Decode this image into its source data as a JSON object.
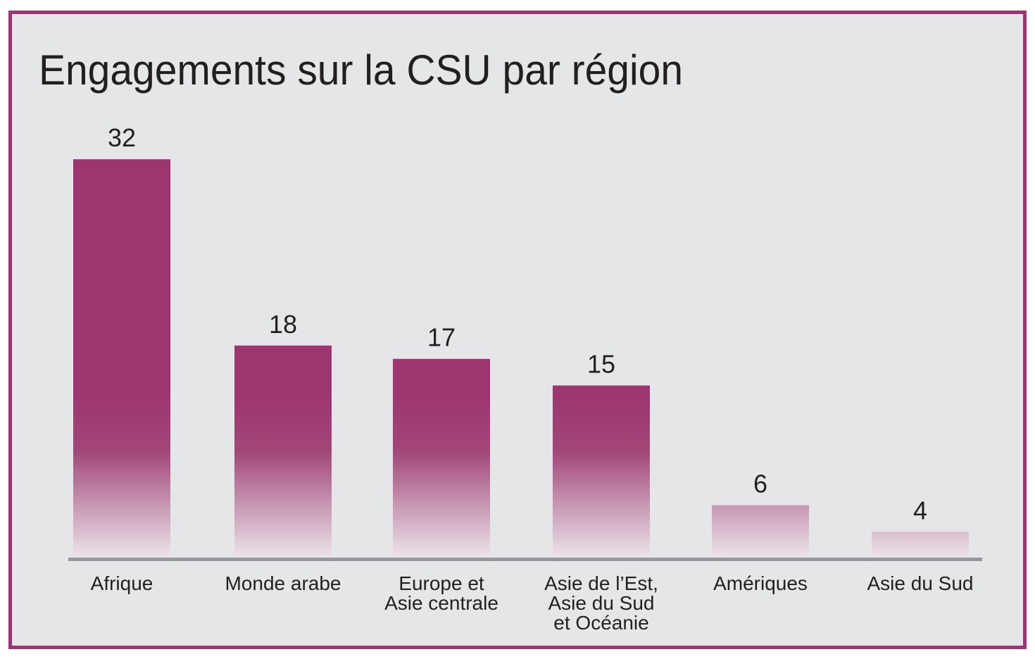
{
  "chart_data": {
    "type": "bar",
    "title": "Engagements sur la CSU par région",
    "xlabel": "",
    "ylabel": "",
    "categories": [
      [
        "Afrique"
      ],
      [
        "Monde arabe"
      ],
      [
        "Europe et",
        "Asie centrale"
      ],
      [
        "Asie de l’Est,",
        "Asie du Sud",
        "et Océanie"
      ],
      [
        "Amériques"
      ],
      [
        "Asie du Sud"
      ]
    ],
    "values": [
      32,
      18,
      17,
      15,
      6,
      4
    ],
    "grid": false,
    "legend": "none",
    "colors": {
      "bar": "#9d3571",
      "bar_fade": "#f3eef2",
      "frame": "#9e3572",
      "background": "#e5e6e8",
      "axis": "#96979b"
    }
  }
}
